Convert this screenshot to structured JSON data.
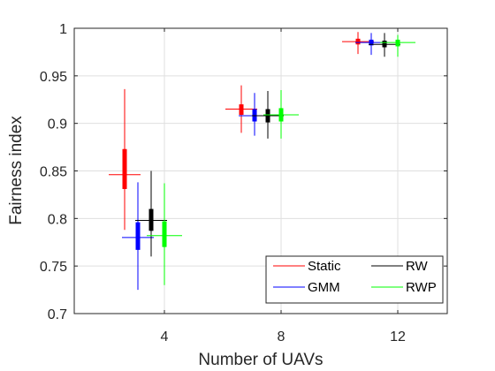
{
  "chart_data": {
    "type": "box",
    "xlabel": "Number of UAVs",
    "ylabel": "Fairness index",
    "categories": [
      "4",
      "8",
      "12"
    ],
    "ylim": [
      0.7,
      1.0
    ],
    "yticks": [
      "0.7",
      "0.75",
      "0.8",
      "0.85",
      "0.9",
      "0.95",
      "1"
    ],
    "grid": true,
    "legend_position": "bottom-right",
    "series": [
      {
        "name": "Static",
        "color": "#ff0000",
        "boxes": [
          {
            "min": 0.788,
            "q1": 0.831,
            "median": 0.846,
            "q3": 0.873,
            "max": 0.936
          },
          {
            "min": 0.89,
            "q1": 0.909,
            "median": 0.915,
            "q3": 0.92,
            "max": 0.94
          },
          {
            "min": 0.973,
            "q1": 0.983,
            "median": 0.986,
            "q3": 0.989,
            "max": 0.996
          }
        ]
      },
      {
        "name": "GMM",
        "color": "#0000ff",
        "boxes": [
          {
            "min": 0.725,
            "q1": 0.767,
            "median": 0.78,
            "q3": 0.796,
            "max": 0.838
          },
          {
            "min": 0.887,
            "q1": 0.902,
            "median": 0.908,
            "q3": 0.915,
            "max": 0.932
          },
          {
            "min": 0.972,
            "q1": 0.982,
            "median": 0.985,
            "q3": 0.988,
            "max": 0.995
          }
        ]
      },
      {
        "name": "RW",
        "color": "#000000",
        "boxes": [
          {
            "min": 0.76,
            "q1": 0.787,
            "median": 0.798,
            "q3": 0.81,
            "max": 0.85
          },
          {
            "min": 0.884,
            "q1": 0.901,
            "median": 0.908,
            "q3": 0.915,
            "max": 0.934
          },
          {
            "min": 0.97,
            "q1": 0.98,
            "median": 0.983,
            "q3": 0.987,
            "max": 0.995
          }
        ]
      },
      {
        "name": "RWP",
        "color": "#00ff00",
        "boxes": [
          {
            "min": 0.73,
            "q1": 0.77,
            "median": 0.782,
            "q3": 0.797,
            "max": 0.837
          },
          {
            "min": 0.884,
            "q1": 0.902,
            "median": 0.909,
            "q3": 0.916,
            "max": 0.935
          },
          {
            "min": 0.97,
            "q1": 0.981,
            "median": 0.985,
            "q3": 0.988,
            "max": 0.993
          }
        ]
      }
    ]
  }
}
